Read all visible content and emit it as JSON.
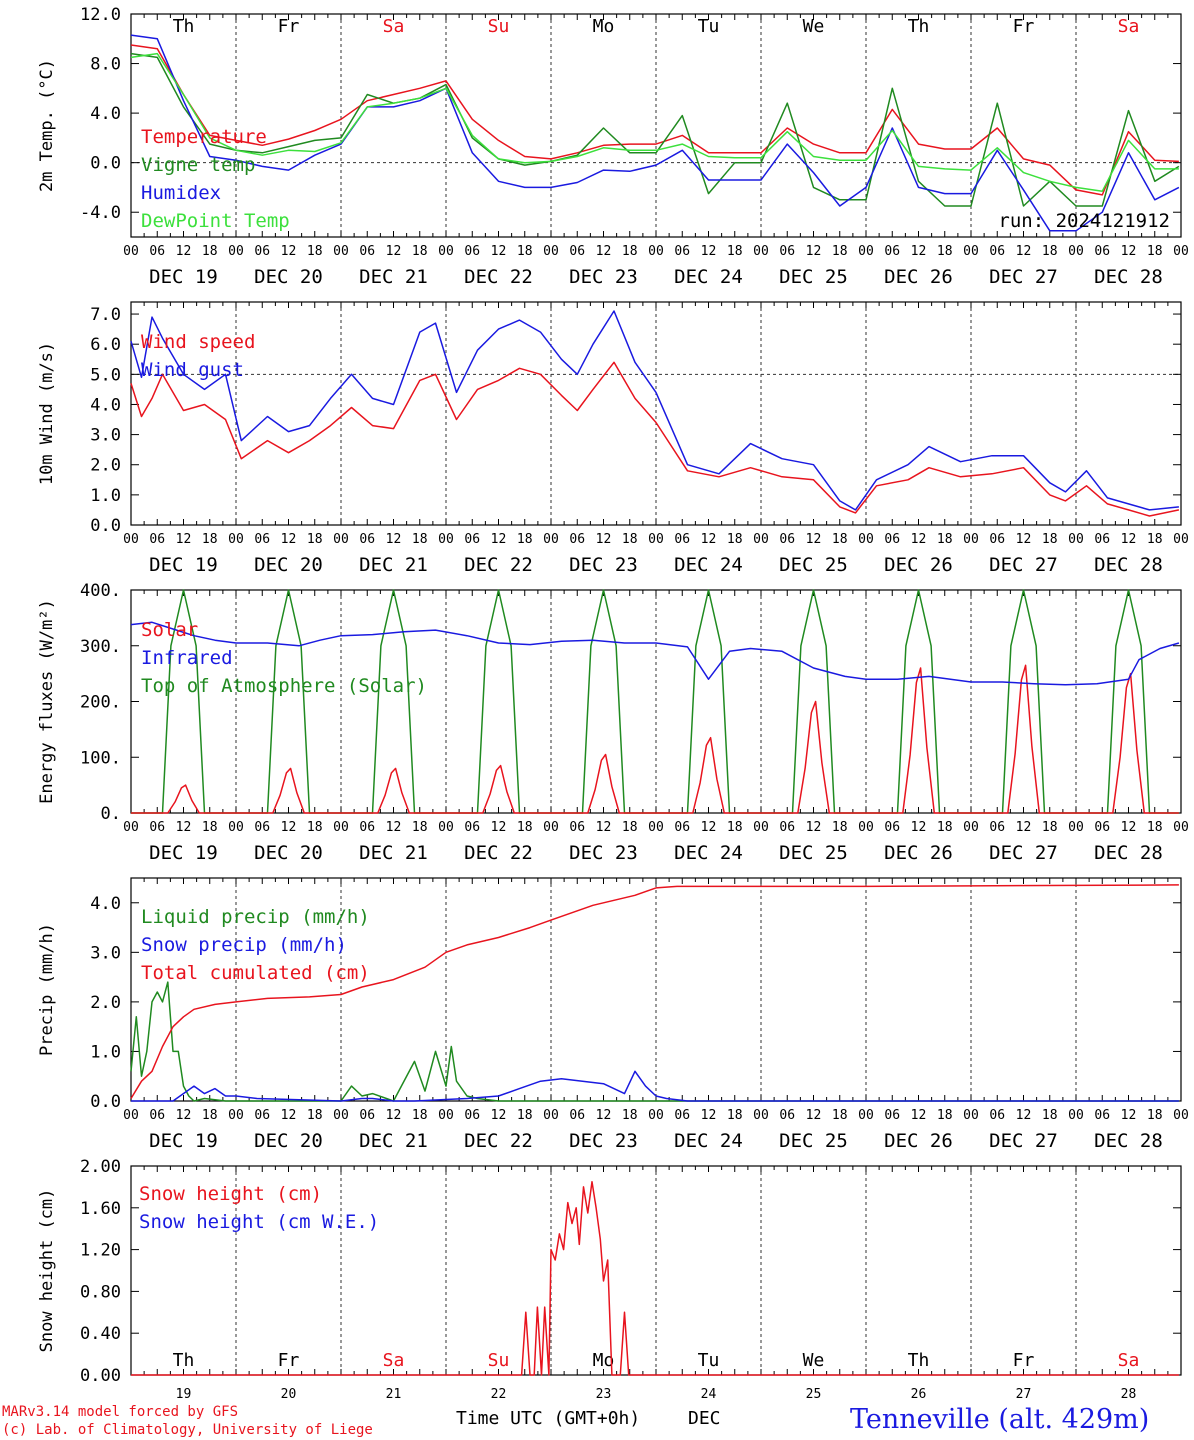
{
  "days": [
    "Th",
    "Fr",
    "Sa",
    "Su",
    "Mo",
    "Tu",
    "We",
    "Th",
    "Fr",
    "Sa"
  ],
  "weekend_flags": [
    false,
    false,
    true,
    true,
    false,
    false,
    false,
    false,
    false,
    true
  ],
  "dates": [
    "DEC 19",
    "DEC 20",
    "DEC 21",
    "DEC 22",
    "DEC 23",
    "DEC 24",
    "DEC 25",
    "DEC 26",
    "DEC 27",
    "DEC 28"
  ],
  "day_numbers": [
    "19",
    "20",
    "21",
    "22",
    "23",
    "24",
    "25",
    "26",
    "27",
    "28"
  ],
  "hour_ticks": [
    "00",
    "06",
    "12",
    "18"
  ],
  "hour_tick_end": "00",
  "run_label": "run: 2024121912",
  "footer": {
    "credit1": "MARv3.14 model forced by GFS",
    "credit2": "(c) Lab. of Climatology, University of Liege",
    "xlabel": "Time UTC (GMT+0h)",
    "month": "DEC",
    "station": "Tenneville (alt. 429m)"
  },
  "colors": {
    "red": "#e8141e",
    "green": "#208a20",
    "blue": "#1a1ae0",
    "lightgreen": "#3ce03c",
    "weekend": "#e8141e"
  },
  "chart_data": [
    {
      "type": "line",
      "ylabel": "2m Temp. (°C)",
      "ylim": [
        -6,
        12
      ],
      "yticks": [
        "12.0",
        "8.0",
        "4.0",
        "0.0",
        "-4.0"
      ],
      "ytick_values": [
        12,
        8,
        4,
        0,
        -4
      ],
      "ref_line": 0,
      "x_unit": "days since 2024-12-19 00 UTC",
      "series": [
        {
          "name": "Temperature",
          "color": "#e8141e",
          "x": [
            0,
            0.25,
            0.5,
            0.75,
            1,
            1.25,
            1.5,
            1.75,
            2,
            2.25,
            2.5,
            2.75,
            3,
            3.25,
            3.5,
            3.75,
            4,
            4.25,
            4.5,
            4.75,
            5,
            5.25,
            5.5,
            5.75,
            6,
            6.25,
            6.5,
            6.75,
            7,
            7.25,
            7.5,
            7.75,
            8,
            8.25,
            8.5,
            8.75,
            9,
            9.25,
            9.5,
            9.75,
            9.98
          ],
          "y": [
            9.5,
            9.2,
            5.5,
            2.2,
            1.8,
            1.4,
            1.9,
            2.6,
            3.5,
            5.0,
            5.5,
            6.0,
            6.6,
            3.5,
            1.8,
            0.5,
            0.3,
            0.8,
            1.4,
            1.5,
            1.5,
            2.2,
            0.8,
            0.8,
            0.8,
            2.8,
            1.5,
            0.8,
            0.8,
            4.3,
            1.5,
            1.1,
            1.1,
            2.8,
            0.3,
            -0.2,
            -2.2,
            -2.6,
            2.5,
            0.2,
            0.1
          ]
        },
        {
          "name": "Vigne temp",
          "color": "#208a20",
          "x": [
            0,
            0.25,
            0.5,
            0.75,
            1,
            1.25,
            1.5,
            1.75,
            2,
            2.25,
            2.5,
            2.75,
            3,
            3.25,
            3.5,
            3.75,
            4,
            4.25,
            4.5,
            4.75,
            5,
            5.25,
            5.5,
            5.75,
            6,
            6.25,
            6.5,
            6.75,
            7,
            7.25,
            7.5,
            7.75,
            8,
            8.25,
            8.5,
            8.75,
            9,
            9.25,
            9.5,
            9.75,
            9.98
          ],
          "y": [
            8.8,
            8.5,
            4.5,
            1.5,
            1.0,
            0.8,
            1.3,
            1.8,
            2.0,
            5.5,
            4.8,
            5.2,
            6.3,
            2.0,
            0.3,
            -0.2,
            0.1,
            0.6,
            2.8,
            0.8,
            0.8,
            3.8,
            -2.5,
            0.0,
            0.0,
            4.8,
            -2.0,
            -3.0,
            -3.0,
            6.0,
            -1.5,
            -3.5,
            -3.5,
            4.8,
            -3.5,
            -1.5,
            -3.5,
            -3.5,
            4.2,
            -1.5,
            -0.3
          ]
        },
        {
          "name": "Humidex",
          "color": "#1a1ae0",
          "x": [
            0,
            0.25,
            0.5,
            0.75,
            1,
            1.25,
            1.5,
            1.75,
            2,
            2.25,
            2.5,
            2.75,
            3,
            3.25,
            3.5,
            3.75,
            4,
            4.25,
            4.5,
            4.75,
            5,
            5.25,
            5.5,
            5.75,
            6,
            6.25,
            6.5,
            6.75,
            7,
            7.25,
            7.5,
            7.75,
            8,
            8.25,
            8.5,
            8.75,
            9,
            9.25,
            9.5,
            9.75,
            9.98
          ],
          "y": [
            10.3,
            10.0,
            5.0,
            0.5,
            0.2,
            -0.3,
            -0.6,
            0.6,
            1.5,
            4.5,
            4.5,
            5.0,
            6.0,
            0.8,
            -1.5,
            -2.0,
            -2.0,
            -1.6,
            -0.6,
            -0.7,
            -0.2,
            1.0,
            -1.4,
            -1.4,
            -1.4,
            1.5,
            -0.8,
            -3.5,
            -2.0,
            2.8,
            -2.0,
            -2.5,
            -2.5,
            1.0,
            -2.2,
            -5.5,
            -5.5,
            -4.0,
            0.8,
            -3.0,
            -2.0
          ]
        },
        {
          "name": "DewPoint Temp",
          "color": "#3ce03c",
          "x": [
            0,
            0.25,
            0.5,
            0.75,
            1,
            1.25,
            1.5,
            1.75,
            2,
            2.25,
            2.5,
            2.75,
            3,
            3.25,
            3.5,
            3.75,
            4,
            4.25,
            4.5,
            4.75,
            5,
            5.25,
            5.5,
            5.75,
            6,
            6.25,
            6.5,
            6.75,
            7,
            7.25,
            7.5,
            7.75,
            8,
            8.25,
            8.5,
            8.75,
            9,
            9.25,
            9.5,
            9.75,
            9.98
          ],
          "y": [
            8.5,
            8.8,
            5.5,
            2.0,
            1.0,
            0.6,
            1.0,
            0.9,
            1.6,
            4.5,
            4.8,
            5.2,
            6.0,
            2.2,
            0.3,
            0.0,
            0.1,
            0.5,
            1.2,
            1.0,
            1.0,
            1.5,
            0.5,
            0.4,
            0.4,
            2.5,
            0.5,
            0.2,
            0.2,
            2.6,
            -0.3,
            -0.5,
            -0.6,
            1.2,
            -0.8,
            -1.5,
            -2.0,
            -2.3,
            1.8,
            -0.5,
            -0.5
          ]
        }
      ]
    },
    {
      "type": "line",
      "ylabel": "10m Wind (m/s)",
      "ylim": [
        0,
        7.4
      ],
      "yticks": [
        "7.0",
        "6.0",
        "5.0",
        "4.0",
        "3.0",
        "2.0",
        "1.0",
        "0.0"
      ],
      "ytick_values": [
        7,
        6,
        5,
        4,
        3,
        2,
        1,
        0
      ],
      "ref_line": 5,
      "series": [
        {
          "name": "Wind speed",
          "color": "#e8141e",
          "x": [
            0,
            0.1,
            0.2,
            0.3,
            0.5,
            0.7,
            0.9,
            1.05,
            1.3,
            1.5,
            1.7,
            1.9,
            2.1,
            2.3,
            2.5,
            2.75,
            2.9,
            3.1,
            3.3,
            3.5,
            3.7,
            3.9,
            4.1,
            4.25,
            4.4,
            4.6,
            4.8,
            5.0,
            5.3,
            5.6,
            5.9,
            6.2,
            6.5,
            6.75,
            6.9,
            7.1,
            7.4,
            7.6,
            7.9,
            8.2,
            8.5,
            8.75,
            8.9,
            9.1,
            9.3,
            9.5,
            9.7,
            9.98
          ],
          "y": [
            4.7,
            3.6,
            4.2,
            5.0,
            3.8,
            4.0,
            3.5,
            2.2,
            2.8,
            2.4,
            2.8,
            3.3,
            3.9,
            3.3,
            3.2,
            4.8,
            5.0,
            3.5,
            4.5,
            4.8,
            5.2,
            5.0,
            4.3,
            3.8,
            4.5,
            5.4,
            4.2,
            3.4,
            1.8,
            1.6,
            1.9,
            1.6,
            1.5,
            0.6,
            0.4,
            1.3,
            1.5,
            1.9,
            1.6,
            1.7,
            1.9,
            1.0,
            0.8,
            1.3,
            0.7,
            0.5,
            0.3,
            0.5
          ]
        },
        {
          "name": "Wind gust",
          "color": "#1a1ae0",
          "x": [
            0,
            0.1,
            0.2,
            0.3,
            0.5,
            0.7,
            0.9,
            1.05,
            1.3,
            1.5,
            1.7,
            1.9,
            2.1,
            2.3,
            2.5,
            2.75,
            2.9,
            3.1,
            3.3,
            3.5,
            3.7,
            3.9,
            4.1,
            4.25,
            4.4,
            4.6,
            4.8,
            5.0,
            5.3,
            5.6,
            5.9,
            6.2,
            6.5,
            6.75,
            6.9,
            7.1,
            7.4,
            7.6,
            7.9,
            8.2,
            8.5,
            8.75,
            8.9,
            9.1,
            9.3,
            9.5,
            9.7,
            9.98
          ],
          "y": [
            6.1,
            4.9,
            6.9,
            6.2,
            5.0,
            4.5,
            5.0,
            2.8,
            3.6,
            3.1,
            3.3,
            4.2,
            5.0,
            4.2,
            4.0,
            6.4,
            6.7,
            4.4,
            5.8,
            6.5,
            6.8,
            6.4,
            5.5,
            5.0,
            6.0,
            7.1,
            5.4,
            4.4,
            2.0,
            1.7,
            2.7,
            2.2,
            2.0,
            0.8,
            0.5,
            1.5,
            2.0,
            2.6,
            2.1,
            2.3,
            2.3,
            1.4,
            1.1,
            1.8,
            0.9,
            0.7,
            0.5,
            0.6
          ]
        }
      ]
    },
    {
      "type": "line",
      "ylabel": "Energy fluxes (W/m²)",
      "ylim": [
        0,
        400
      ],
      "yticks": [
        "400.",
        "300.",
        "200.",
        "100.",
        "0."
      ],
      "ytick_values": [
        400,
        300,
        200,
        100,
        0
      ],
      "solar_peaks": [
        50,
        80,
        80,
        85,
        105,
        135,
        200,
        260,
        265,
        250
      ],
      "toa_peak": 400,
      "series": [
        {
          "name": "Solar",
          "color": "#e8141e"
        },
        {
          "name": "Infrared",
          "color": "#1a1ae0",
          "x": [
            0,
            0.2,
            0.4,
            0.6,
            0.8,
            1.0,
            1.3,
            1.6,
            1.8,
            2.0,
            2.3,
            2.6,
            2.9,
            3.2,
            3.5,
            3.8,
            4.1,
            4.4,
            4.7,
            5.0,
            5.3,
            5.5,
            5.7,
            5.9,
            6.2,
            6.5,
            6.8,
            7.0,
            7.3,
            7.6,
            8.0,
            8.3,
            8.6,
            8.9,
            9.2,
            9.5,
            9.6,
            9.8,
            9.98
          ],
          "y": [
            338,
            342,
            330,
            318,
            310,
            305,
            305,
            300,
            310,
            318,
            320,
            325,
            328,
            318,
            305,
            302,
            308,
            310,
            305,
            305,
            298,
            240,
            290,
            295,
            290,
            260,
            245,
            240,
            240,
            245,
            235,
            235,
            232,
            230,
            232,
            240,
            275,
            295,
            305
          ]
        },
        {
          "name": "Top of Atmosphere (Solar)",
          "color": "#208a20"
        }
      ]
    },
    {
      "type": "line",
      "ylabel": "Precip (mm/h)",
      "ylim": [
        0,
        4.5
      ],
      "yticks": [
        "4.0",
        "3.0",
        "2.0",
        "1.0",
        "0.0"
      ],
      "ytick_values": [
        4,
        3,
        2,
        1,
        0
      ],
      "series": [
        {
          "name": "Liquid precip (mm/h)",
          "color": "#208a20",
          "x": [
            0,
            0.05,
            0.1,
            0.15,
            0.2,
            0.25,
            0.3,
            0.35,
            0.4,
            0.45,
            0.5,
            0.55,
            0.6,
            0.7,
            0.9,
            1.2,
            2.0,
            2.1,
            2.2,
            2.3,
            2.5,
            2.7,
            2.8,
            2.9,
            3.0,
            3.05,
            3.1,
            3.2,
            3.3,
            3.5,
            4.0,
            5.0,
            9.98
          ],
          "y": [
            0.6,
            1.7,
            0.5,
            1.0,
            2.0,
            2.2,
            2.0,
            2.4,
            1.0,
            1.0,
            0.3,
            0.1,
            0.0,
            0.05,
            0.0,
            0.0,
            0.0,
            0.3,
            0.1,
            0.15,
            0.0,
            0.8,
            0.2,
            1.0,
            0.3,
            1.1,
            0.4,
            0.1,
            0.05,
            0.0,
            0.0,
            0.0,
            0.0
          ]
        },
        {
          "name": "Snow precip (mm/h)",
          "color": "#1a1ae0",
          "x": [
            0,
            0.4,
            0.6,
            0.7,
            0.8,
            0.9,
            1.0,
            1.2,
            2.0,
            2.2,
            2.3,
            2.5,
            2.7,
            3.2,
            3.5,
            3.7,
            3.9,
            4.1,
            4.3,
            4.5,
            4.7,
            4.8,
            4.9,
            5.0,
            5.1,
            5.3,
            5.5,
            9.98
          ],
          "y": [
            0.0,
            0.0,
            0.3,
            0.15,
            0.25,
            0.1,
            0.1,
            0.05,
            0.0,
            0.05,
            0.05,
            0.0,
            0.0,
            0.05,
            0.1,
            0.25,
            0.4,
            0.45,
            0.4,
            0.35,
            0.15,
            0.6,
            0.3,
            0.1,
            0.05,
            0.0,
            0.0,
            0.0
          ]
        },
        {
          "name": "Total cumulated (cm)",
          "color": "#e8141e",
          "x": [
            0,
            0.1,
            0.2,
            0.3,
            0.4,
            0.5,
            0.6,
            0.8,
            1.0,
            1.3,
            1.7,
            2.0,
            2.2,
            2.5,
            2.8,
            3.0,
            3.2,
            3.5,
            3.8,
            4.0,
            4.2,
            4.4,
            4.6,
            4.8,
            5.0,
            5.2,
            6.0,
            7.0,
            8.0,
            9.0,
            9.98
          ],
          "y": [
            0.05,
            0.4,
            0.6,
            1.1,
            1.5,
            1.7,
            1.85,
            1.95,
            2.0,
            2.07,
            2.1,
            2.15,
            2.3,
            2.45,
            2.7,
            3.0,
            3.15,
            3.3,
            3.5,
            3.65,
            3.8,
            3.95,
            4.05,
            4.15,
            4.3,
            4.33,
            4.33,
            4.33,
            4.34,
            4.35,
            4.36
          ]
        }
      ]
    },
    {
      "type": "line",
      "ylabel": "Snow height (cm)",
      "ylim": [
        0,
        2
      ],
      "yticks": [
        "2.00",
        "1.60",
        "1.20",
        "0.80",
        "0.40",
        "0.00"
      ],
      "ytick_values": [
        2.0,
        1.6,
        1.2,
        0.8,
        0.4,
        0.0
      ],
      "series": [
        {
          "name": "Snow height (cm)",
          "color": "#e8141e",
          "x": [
            0,
            3.72,
            3.76,
            3.8,
            3.84,
            3.87,
            3.91,
            3.94,
            3.98,
            4.0,
            4.04,
            4.08,
            4.12,
            4.16,
            4.2,
            4.24,
            4.27,
            4.31,
            4.35,
            4.39,
            4.43,
            4.47,
            4.5,
            4.54,
            4.58,
            4.62,
            4.66,
            4.7,
            4.74,
            9.98
          ],
          "y": [
            0,
            0,
            0.6,
            0,
            0,
            0.65,
            0,
            0.65,
            0,
            1.2,
            1.1,
            1.35,
            1.2,
            1.65,
            1.45,
            1.6,
            1.25,
            1.8,
            1.55,
            1.85,
            1.6,
            1.3,
            0.9,
            1.1,
            0,
            0,
            0,
            0.6,
            0,
            0
          ]
        },
        {
          "name": "Snow height (cm W.E.)",
          "color": "#1a1ae0"
        }
      ]
    }
  ]
}
